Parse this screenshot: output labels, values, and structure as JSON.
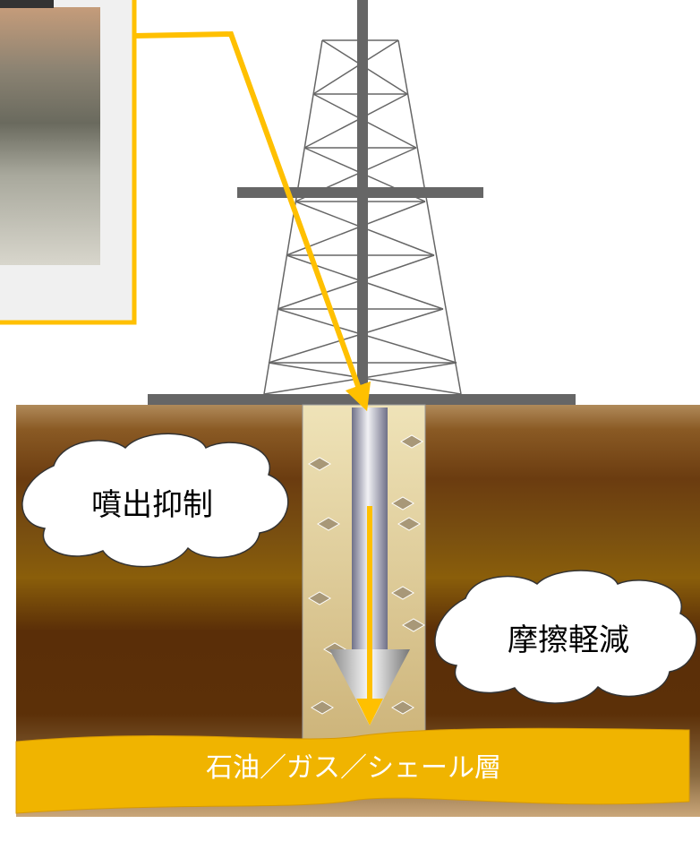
{
  "callouts": [
    {
      "label": "噴出抑制"
    },
    {
      "label": "摩擦軽減"
    }
  ],
  "layer": {
    "label": "石油／ガス／シェール層"
  }
}
